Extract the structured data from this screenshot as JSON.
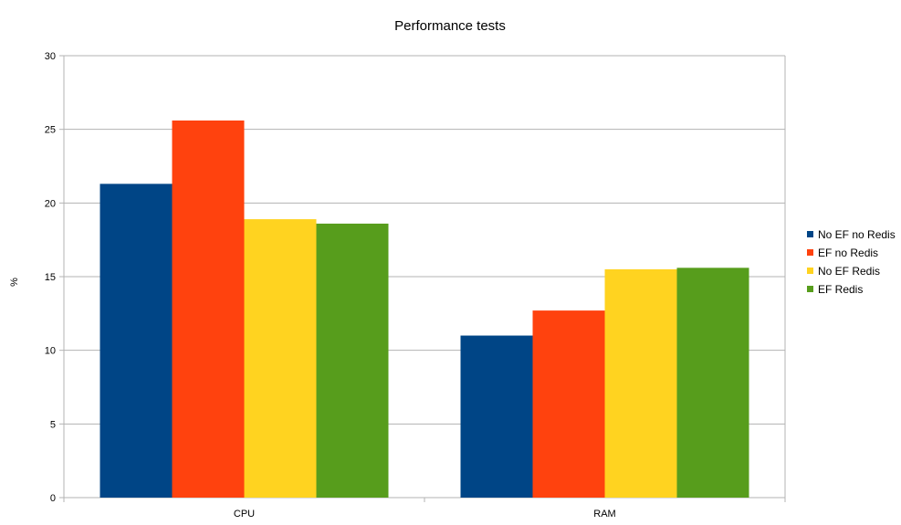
{
  "chart_data": {
    "type": "bar",
    "title": "Performance tests",
    "xlabel": "",
    "ylabel": "%",
    "categories": [
      "CPU",
      "RAM"
    ],
    "series": [
      {
        "name": "No EF no Redis",
        "values": [
          21.3,
          11.0
        ],
        "color": "#004586"
      },
      {
        "name": "EF no Redis",
        "values": [
          25.6,
          12.7
        ],
        "color": "#ff420e"
      },
      {
        "name": "No EF Redis",
        "values": [
          18.9,
          15.5
        ],
        "color": "#ffd320"
      },
      {
        "name": "EF Redis",
        "values": [
          18.6,
          15.6
        ],
        "color": "#579d1c"
      }
    ],
    "ylim": [
      0,
      30
    ],
    "yticks": [
      0,
      5,
      10,
      15,
      20,
      25,
      30
    ],
    "grid": true,
    "legend": "right"
  }
}
